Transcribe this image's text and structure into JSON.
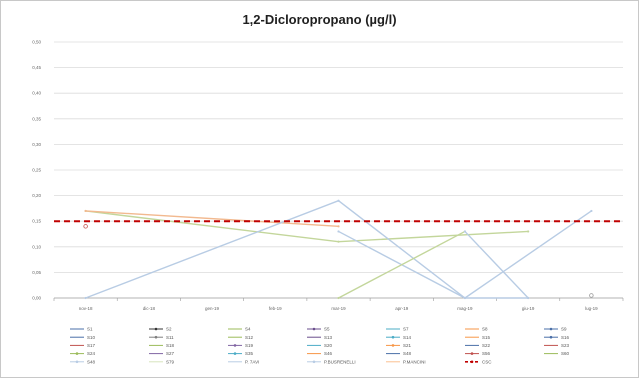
{
  "chart_data": {
    "type": "line",
    "title": "1,2-Dicloropropano (µg/l)",
    "xlabel": "",
    "ylabel": "",
    "categories": [
      "nov-18",
      "dic-18",
      "gen-19",
      "feb-19",
      "mar-19",
      "apr-19",
      "mag-19",
      "giu-19",
      "lug-19"
    ],
    "y_ticks": [
      "0,00",
      "0,05",
      "0,10",
      "0,15",
      "0,20",
      "0,25",
      "0,30",
      "0,35",
      "0,40",
      "0,45",
      "0,50"
    ],
    "ylim": [
      0,
      0.5
    ],
    "grid": true,
    "legend_position": "bottom",
    "legend": [
      "S1",
      "S2",
      "S4",
      "S5",
      "S7",
      "S8",
      "S9",
      "S10",
      "S11",
      "S12",
      "S13",
      "S14",
      "S15",
      "S16",
      "S17",
      "S18",
      "S19",
      "S20",
      "S21",
      "S22",
      "S23",
      "S24",
      "S27",
      "S35",
      "S46",
      "S48",
      "S56",
      "S60",
      "S48",
      "S79",
      "P. 7AVI",
      "P.BUSRENELLI",
      "P.MANCINI",
      "CSC"
    ],
    "legend_colors": [
      "#4a6fa8",
      "#333333",
      "#9bbb59",
      "#6a4d8c",
      "#4bacc6",
      "#f79646",
      "#4a6fa8",
      "#4a6fa8",
      "#7f7f7f",
      "#9bbb59",
      "#6a4d8c",
      "#4bacc6",
      "#f79646",
      "#4a6fa8",
      "#c0504d",
      "#9bbb59",
      "#8064a2",
      "#4bacc6",
      "#f79646",
      "#4a6fa8",
      "#c0504d",
      "#9bbb59",
      "#8064a2",
      "#4bacc6",
      "#f79646",
      "#4a6fa8",
      "#c0504d",
      "#9bbb59",
      "#b8cce4",
      "#d7e4bd",
      "#b8cce4",
      "#b8cce4",
      "#fac090",
      "#c00000"
    ],
    "series": [
      {
        "name": "S4",
        "color": "#c3d69b",
        "x": [
          "nov-18",
          "mar-19",
          "giu-19"
        ],
        "values": [
          0.17,
          0.11,
          0.13
        ]
      },
      {
        "name": "S8",
        "color": "#f2b98f",
        "x": [
          "nov-18",
          "mar-19"
        ],
        "values": [
          0.17,
          0.14
        ]
      },
      {
        "name": "S1",
        "color": "#b8cce4",
        "x": [
          "nov-18",
          "mar-19",
          "mag-19",
          "giu-19"
        ],
        "values": [
          0.0,
          0.19,
          0.0,
          0.0
        ]
      },
      {
        "name": "S7",
        "color": "#b8cce4",
        "x": [
          "mar-19",
          "mag-19",
          "lug-19"
        ],
        "values": [
          0.13,
          0.0,
          0.17
        ]
      },
      {
        "name": "S35",
        "color": "#c3d69b",
        "x": [
          "mar-19",
          "mag-19"
        ],
        "values": [
          0.0,
          0.13
        ]
      },
      {
        "name": "S46",
        "color": "#b8cce4",
        "x": [
          "mag-19",
          "giu-19"
        ],
        "values": [
          0.13,
          0.0
        ]
      }
    ],
    "csc_value": 0.15,
    "csc_label": "CSC",
    "marker_points": [
      {
        "x": "nov-18",
        "y": 0.14,
        "color": "#c0504d"
      },
      {
        "x": "lug-19",
        "y": 0.005,
        "color": "#999999"
      }
    ]
  }
}
